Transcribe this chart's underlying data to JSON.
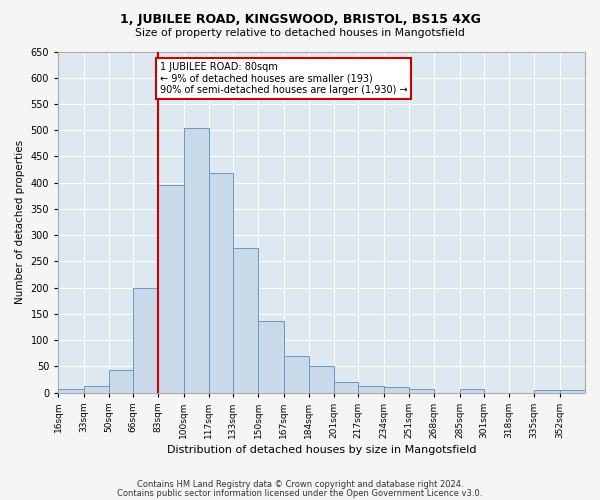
{
  "title1": "1, JUBILEE ROAD, KINGSWOOD, BRISTOL, BS15 4XG",
  "title2": "Size of property relative to detached houses in Mangotsfield",
  "xlabel": "Distribution of detached houses by size in Mangotsfield",
  "ylabel": "Number of detached properties",
  "footnote1": "Contains HM Land Registry data © Crown copyright and database right 2024.",
  "footnote2": "Contains public sector information licensed under the Open Government Licence v3.0.",
  "bar_labels": [
    "16sqm",
    "33sqm",
    "50sqm",
    "66sqm",
    "83sqm",
    "100sqm",
    "117sqm",
    "133sqm",
    "150sqm",
    "167sqm",
    "184sqm",
    "201sqm",
    "217sqm",
    "234sqm",
    "251sqm",
    "268sqm",
    "285sqm",
    "301sqm",
    "318sqm",
    "335sqm",
    "352sqm"
  ],
  "bar_values": [
    7,
    12,
    44,
    200,
    395,
    505,
    418,
    275,
    137,
    70,
    50,
    20,
    12,
    10,
    7,
    0,
    7,
    0,
    0,
    5,
    5
  ],
  "bin_edges": [
    16,
    33,
    50,
    66,
    83,
    100,
    117,
    133,
    150,
    167,
    184,
    201,
    217,
    234,
    251,
    268,
    285,
    301,
    318,
    335,
    352
  ],
  "bar_color": "#c9d9ea",
  "bar_edge_color": "#6699bb",
  "plot_bg_color": "#dde8f0",
  "fig_bg_color": "#f5f5f5",
  "grid_color": "#ffffff",
  "red_line_x": 83,
  "annotation_line1": "1 JUBILEE ROAD: 80sqm",
  "annotation_line2": "← 9% of detached houses are smaller (193)",
  "annotation_line3": "90% of semi-detached houses are larger (1,930) →",
  "annotation_box_color": "#ffffff",
  "annotation_box_edge_color": "#cc0000",
  "ylim_max": 650,
  "yticks": [
    0,
    50,
    100,
    150,
    200,
    250,
    300,
    350,
    400,
    450,
    500,
    550,
    600,
    650
  ]
}
